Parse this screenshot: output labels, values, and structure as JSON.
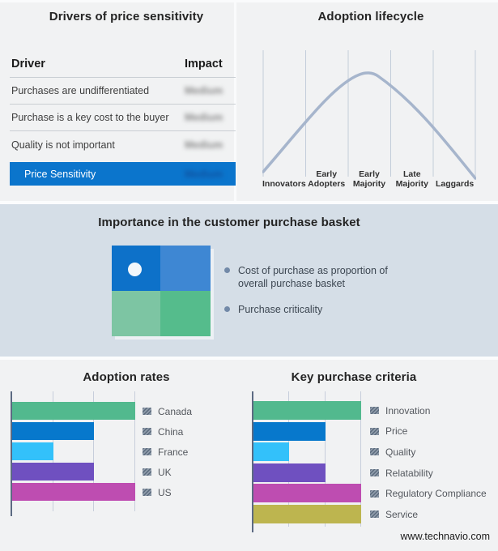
{
  "drivers_panel": {
    "title": "Drivers of price sensitivity",
    "table": {
      "headers": [
        "Driver",
        "Impact"
      ],
      "rows": [
        {
          "driver": "Purchases are undifferentiated",
          "impact": "Medium"
        },
        {
          "driver": "Purchase is a key cost to the buyer",
          "impact": "Medium"
        },
        {
          "driver": "Quality is not important",
          "impact": "Medium"
        }
      ],
      "highlight_row": {
        "driver": "Price Sensitivity",
        "impact": "Medium"
      },
      "impact_values_blurred": true
    }
  },
  "basket_panel": {
    "title": "Importance in the customer purchase basket",
    "bullets": [
      "Cost of purchase as proportion of overall purchase basket",
      "Purchase criticality"
    ]
  },
  "footer": {
    "website": "www.technavio.com"
  },
  "colors": {
    "page_bg": "#f1f2f3",
    "band_bg": "#d5dee7",
    "highlight_blue": "#0b75cc",
    "lifecycle_curve": "#a6b5cc",
    "quadrant_top_left": "#0d71c9",
    "quadrant_top_right": "#3e87d3",
    "quadrant_bottom_left": "#7dc5a3",
    "quadrant_bottom_right": "#55bc8c"
  },
  "chart_data": [
    {
      "type": "line",
      "title": "Adoption lifecycle",
      "curve_shape": "bell",
      "x_stage_labels": [
        "Innovators",
        "Early Adopters",
        "Early Majority",
        "Late Majority",
        "Laggards"
      ],
      "peak_stage": "Early Majority",
      "grid": "vertical stage separators",
      "line_color": "#a6b5cc"
    },
    {
      "type": "bar",
      "orientation": "horizontal",
      "title": "Adoption rates",
      "categories": [
        "Canada",
        "China",
        "France",
        "UK",
        "US"
      ],
      "values": [
        3,
        2,
        1,
        2,
        3
      ],
      "xlim": [
        0,
        3
      ],
      "gridlines": [
        1,
        2,
        3
      ],
      "bar_colors": [
        "#52b98e",
        "#0778cc",
        "#33c1fa",
        "#6f50c0",
        "#be4db1"
      ],
      "legend_position": "right",
      "xlabel": "",
      "ylabel": ""
    },
    {
      "type": "bar",
      "orientation": "horizontal",
      "title": "Key purchase criteria",
      "categories": [
        "Innovation",
        "Price",
        "Quality",
        "Relatability",
        "Regulatory Compliance",
        "Service"
      ],
      "values": [
        3,
        2,
        1,
        2,
        3,
        3
      ],
      "xlim": [
        0,
        3
      ],
      "gridlines": [
        1,
        2,
        3
      ],
      "bar_colors": [
        "#52b98e",
        "#0778cc",
        "#33c1fa",
        "#6f50c0",
        "#be4db1",
        "#bdb54f"
      ],
      "legend_position": "right",
      "xlabel": "",
      "ylabel": ""
    }
  ]
}
